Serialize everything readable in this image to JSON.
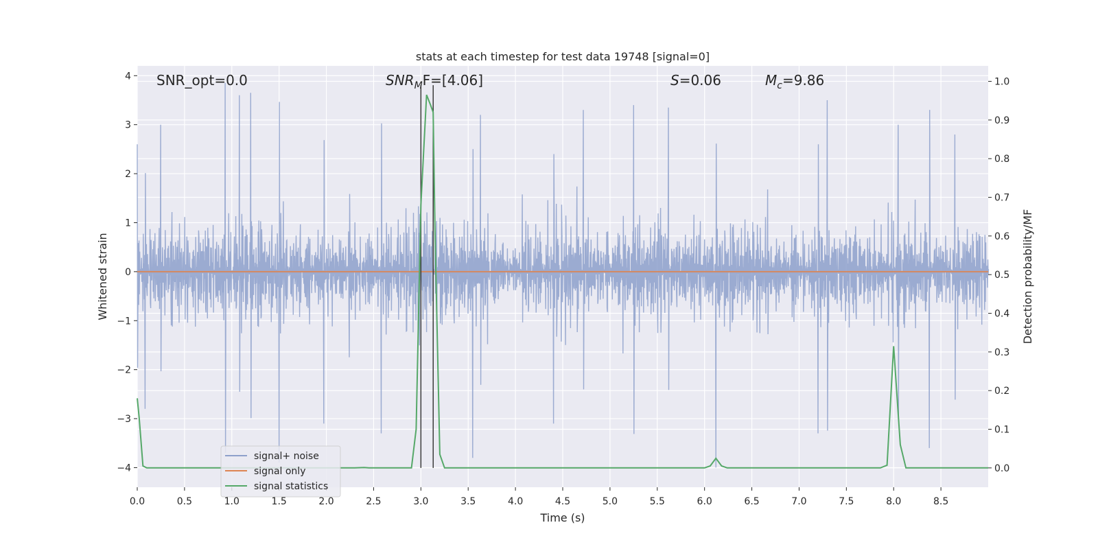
{
  "chart_data": {
    "type": "line",
    "title": "stats at each timestep for test data 19748 [signal=0]",
    "xlabel": "Time (s)",
    "ylabel": "Whitened strain",
    "ylabel_right": "Detection probability/MF",
    "xlim": [
      0.0,
      9.0
    ],
    "ylim": [
      -4.4,
      4.2
    ],
    "ylim_right": [
      -0.05,
      1.04
    ],
    "xticks": [
      "0.0",
      "0.5",
      "1.0",
      "1.5",
      "2.0",
      "2.5",
      "3.0",
      "3.5",
      "4.0",
      "4.5",
      "5.0",
      "5.5",
      "6.0",
      "6.5",
      "7.0",
      "7.5",
      "8.0",
      "8.5"
    ],
    "yticks": [
      "−4",
      "−3",
      "−2",
      "−1",
      "0",
      "1",
      "2",
      "3",
      "4"
    ],
    "yticks_right": [
      "0.0",
      "0.1",
      "0.2",
      "0.3",
      "0.4",
      "0.5",
      "0.6",
      "0.7",
      "0.8",
      "0.9",
      "1.0"
    ],
    "grid": true,
    "legend": {
      "placement": "lower-left",
      "entries": [
        "signal+ noise",
        "signal only",
        "signal statistics"
      ]
    },
    "annotations": {
      "snr_opt": "SNR_opt=0.0",
      "snr_mf_main": "SNR",
      "snr_mf_sub": "M",
      "snr_mf_rest": "F=[4.06]",
      "s_main": "S",
      "s_rest": "=0.06",
      "mc_main": "M",
      "mc_sub": "c",
      "mc_rest": "=9.86"
    },
    "vertical_lines_x": [
      3.0,
      3.13
    ],
    "colors": {
      "signal_noise": "#8da0cb",
      "signal_only": "#dd8452",
      "signal_statistics": "#55a868",
      "vline": "#3c3c3c",
      "axes_bg": "#eaeaf2",
      "grid": "#ffffff"
    },
    "series": [
      {
        "name": "signal+ noise",
        "axis": "left",
        "description": "dense whitened noise trace, roughly within ±2.5 with spikes up to ±3.9",
        "peaks_high": [
          [
            0.0,
            2.6
          ],
          [
            0.93,
            3.85
          ],
          [
            1.08,
            3.6
          ],
          [
            1.2,
            3.65
          ],
          [
            0.25,
            3.0
          ],
          [
            3.63,
            3.2
          ],
          [
            4.72,
            3.3
          ],
          [
            5.25,
            3.4
          ],
          [
            5.62,
            3.35
          ],
          [
            7.3,
            3.5
          ],
          [
            8.05,
            3.0
          ],
          [
            8.65,
            2.8
          ]
        ],
        "peaks_low": [
          [
            1.5,
            -3.9
          ],
          [
            3.55,
            -3.8
          ],
          [
            2.58,
            -3.3
          ],
          [
            4.4,
            -3.1
          ],
          [
            6.12,
            -4.0
          ],
          [
            7.2,
            -3.3
          ],
          [
            8.38,
            -3.6
          ],
          [
            1.97,
            -3.1
          ],
          [
            0.08,
            -2.8
          ]
        ]
      },
      {
        "name": "signal only",
        "axis": "left",
        "x": [
          0.0,
          9.0
        ],
        "y": [
          0.0,
          0.0
        ]
      },
      {
        "name": "signal statistics",
        "axis": "right",
        "x": [
          0.0,
          0.02,
          0.06,
          0.1,
          0.15,
          2.3,
          2.4,
          2.45,
          2.9,
          2.95,
          3.0,
          3.06,
          3.1,
          3.13,
          3.15,
          3.2,
          3.25,
          6.0,
          6.06,
          6.12,
          6.18,
          6.24,
          7.86,
          7.93,
          8.0,
          8.07,
          8.13,
          9.0
        ],
        "y": [
          0.18,
          0.13,
          0.005,
          0.0,
          0.0,
          0.0,
          0.001,
          0.0,
          0.0,
          0.1,
          0.68,
          0.965,
          0.94,
          0.92,
          0.6,
          0.035,
          0.0,
          0.0,
          0.005,
          0.025,
          0.005,
          0.0,
          0.0,
          0.007,
          0.315,
          0.06,
          0.0,
          0.0
        ]
      }
    ]
  }
}
